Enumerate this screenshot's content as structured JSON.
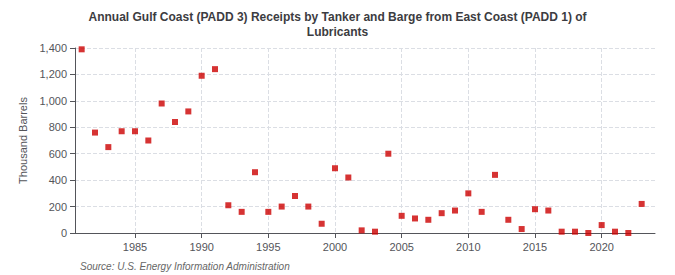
{
  "chart_data": {
    "type": "scatter",
    "title": "Annual Gulf Coast (PADD 3) Receipts by Tanker and Barge from East Coast (PADD 1) of\nLubricants",
    "ylabel": "Thousand Barrels",
    "annotations": [
      "Source: U.S. Energy Information Administration"
    ],
    "x": [
      1981,
      1982,
      1983,
      1984,
      1985,
      1986,
      1987,
      1988,
      1989,
      1990,
      1991,
      1992,
      1993,
      1994,
      1995,
      1996,
      1997,
      1998,
      1999,
      2000,
      2001,
      2002,
      2003,
      2004,
      2005,
      2006,
      2007,
      2008,
      2009,
      2010,
      2011,
      2012,
      2013,
      2014,
      2015,
      2016,
      2017,
      2018,
      2019,
      2020,
      2021,
      2022,
      2023
    ],
    "values": [
      1390,
      760,
      650,
      770,
      770,
      700,
      980,
      840,
      920,
      1190,
      1240,
      210,
      160,
      460,
      160,
      200,
      280,
      200,
      70,
      490,
      420,
      20,
      10,
      600,
      130,
      110,
      100,
      150,
      170,
      300,
      160,
      440,
      100,
      30,
      180,
      170,
      10,
      10,
      0,
      60,
      10,
      0,
      220
    ],
    "color": "#cc0000",
    "marker": "square",
    "xlim": [
      1980.5,
      2024
    ],
    "xticks": [
      1985,
      1990,
      1995,
      2000,
      2005,
      2010,
      2015,
      2020
    ],
    "ylim": [
      0,
      1400
    ],
    "yticks": [
      0,
      200,
      400,
      600,
      800,
      {
        "value": 1000,
        "label": "1,000"
      },
      {
        "value": 1200,
        "label": "1,200"
      },
      {
        "value": 1400,
        "label": "1,400"
      }
    ],
    "grid": true
  }
}
